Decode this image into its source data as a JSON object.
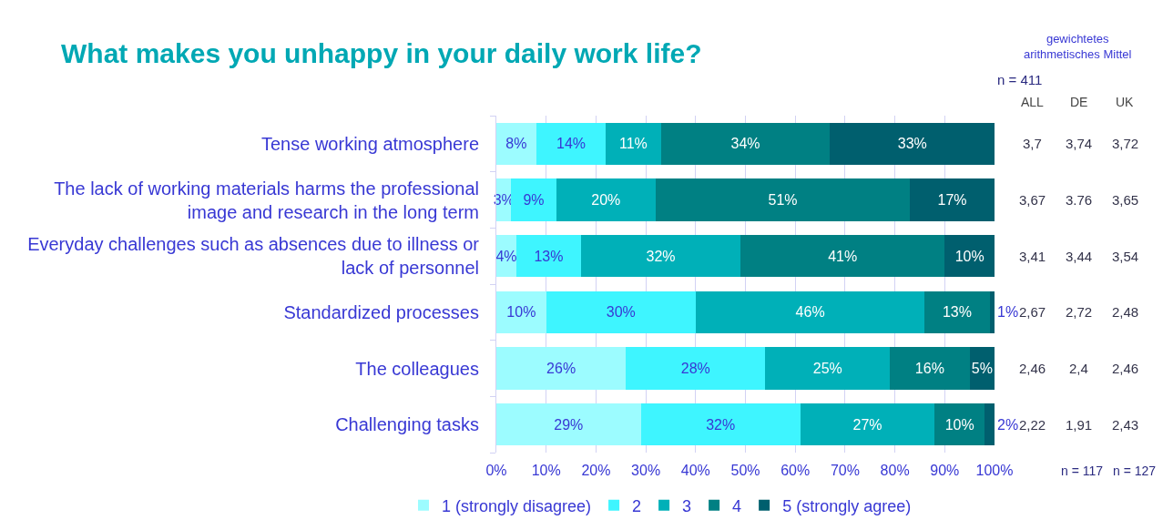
{
  "chart_data": {
    "type": "bar",
    "orientation": "horizontal",
    "stacked": true,
    "title": "What makes you unhappy in your daily work life?",
    "categories": [
      "Tense working atmosphere",
      "The lack of working materials harms the professional image and research in the long term",
      "Everyday challenges such as absences due to illness or lack of personnel",
      "Standardized processes",
      "The colleagues",
      "Challenging tasks"
    ],
    "series": [
      {
        "name": "1 (strongly disagree)",
        "color": "#9cfcff",
        "values": [
          8,
          3,
          4,
          10,
          26,
          29
        ],
        "value_labels": [
          "8%",
          "3%",
          "4%",
          "10%",
          "26%",
          "29%"
        ]
      },
      {
        "name": "2",
        "color": "#3ef5ff",
        "values": [
          14,
          9,
          13,
          30,
          28,
          32
        ],
        "value_labels": [
          "14%",
          "9%",
          "13%",
          "30%",
          "28%",
          "32%"
        ]
      },
      {
        "name": "3",
        "color": "#00b0b8",
        "values": [
          11,
          20,
          32,
          46,
          25,
          27
        ],
        "value_labels": [
          "11%",
          "20%",
          "32%",
          "46%",
          "25%",
          "27%"
        ]
      },
      {
        "name": "4",
        "color": "#008083",
        "values": [
          34,
          51,
          41,
          13,
          16,
          10
        ],
        "value_labels": [
          "34%",
          "51%",
          "41%",
          "13%",
          "16%",
          "10%"
        ]
      },
      {
        "name": "5 (strongly agree)",
        "color": "#005f6e",
        "values": [
          33,
          17,
          10,
          1,
          5,
          2
        ],
        "value_labels": [
          "33%",
          "17%",
          "10%",
          "1%",
          "5%",
          "2%"
        ]
      }
    ],
    "xlim": [
      0,
      100
    ],
    "xticks": [
      {
        "value": 0,
        "label": "0%"
      },
      {
        "value": 10,
        "label": "10%"
      },
      {
        "value": 20,
        "label": "20%"
      },
      {
        "value": 30,
        "label": "30%"
      },
      {
        "value": 40,
        "label": "40%"
      },
      {
        "value": 50,
        "label": "50%"
      },
      {
        "value": 60,
        "label": "60%"
      },
      {
        "value": 70,
        "label": "70%"
      },
      {
        "value": 80,
        "label": "80%"
      },
      {
        "value": 90,
        "label": "90%"
      },
      {
        "value": 100,
        "label": "100%"
      }
    ],
    "grid": "x",
    "legend": "bottom",
    "annotations": [
      "gewichtetes arithmetisches Mittel",
      "n = 411",
      "ALL",
      "DE",
      "UK",
      "3,7",
      "3,74",
      "3,72",
      "3,67",
      "3.76",
      "3,65",
      "3,41",
      "3,44",
      "3,54",
      "2,67",
      "2,72",
      "2,48",
      "2,46",
      "2,4",
      "2,46",
      "2,22",
      "1,91",
      "2,43",
      "n = 117",
      "n = 127"
    ]
  }
}
